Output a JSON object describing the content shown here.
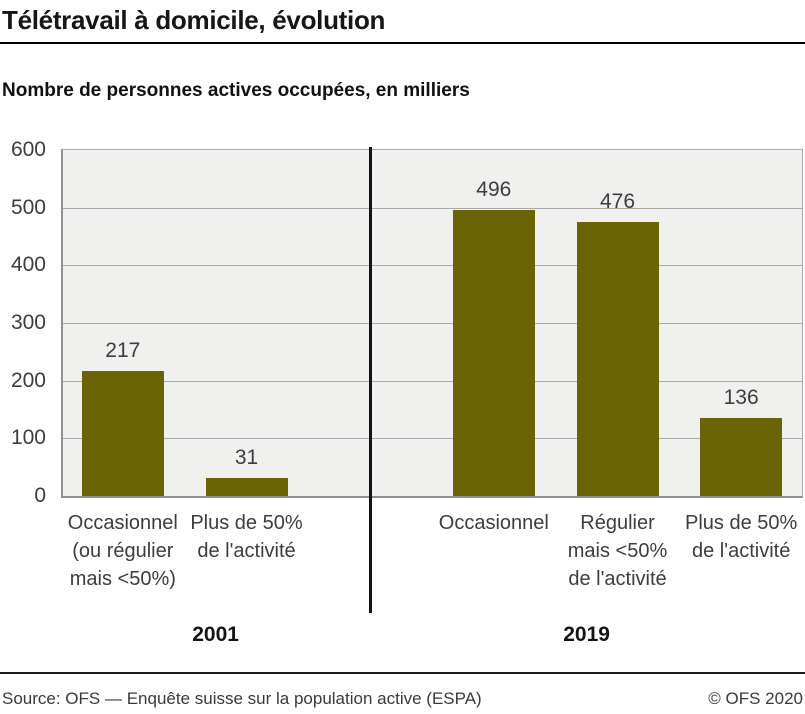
{
  "title": "Télétravail à domicile, évolution",
  "subtitle": "Nombre de personnes actives occupées, en milliers",
  "chart_data": {
    "type": "bar",
    "title": "Télétravail à domicile, évolution",
    "subtitle": "Nombre de personnes actives occupées, en milliers",
    "xlabel": "",
    "ylabel": "Nombre de personnes actives occupées, en milliers",
    "ylim": [
      0,
      600
    ],
    "yticks": [
      0,
      100,
      200,
      300,
      400,
      500,
      600
    ],
    "grid": true,
    "legend_position": "none",
    "bar_color": "#6b6405",
    "plot_background": "#f0f0ef",
    "gridline_color": "#ababab",
    "divider_color": "#141414",
    "groups": [
      {
        "year": "2001",
        "bars": [
          {
            "label_lines": [
              "Occasionnel",
              "(ou régulier",
              "mais <50%)"
            ],
            "value": 217
          },
          {
            "label_lines": [
              "Plus de 50%",
              "de l'activité"
            ],
            "value": 31
          }
        ]
      },
      {
        "year": "2019",
        "bars": [
          {
            "label_lines": [
              "Occasionnel"
            ],
            "value": 496
          },
          {
            "label_lines": [
              "Régulier",
              "mais <50%",
              "de l'activité"
            ],
            "value": 476
          },
          {
            "label_lines": [
              "Plus de 50%",
              "de l'activité"
            ],
            "value": 136
          }
        ]
      }
    ]
  },
  "footer": {
    "source": "Source: OFS — Enquête suisse sur la population active (ESPA)",
    "copyright": "© OFS 2020"
  }
}
